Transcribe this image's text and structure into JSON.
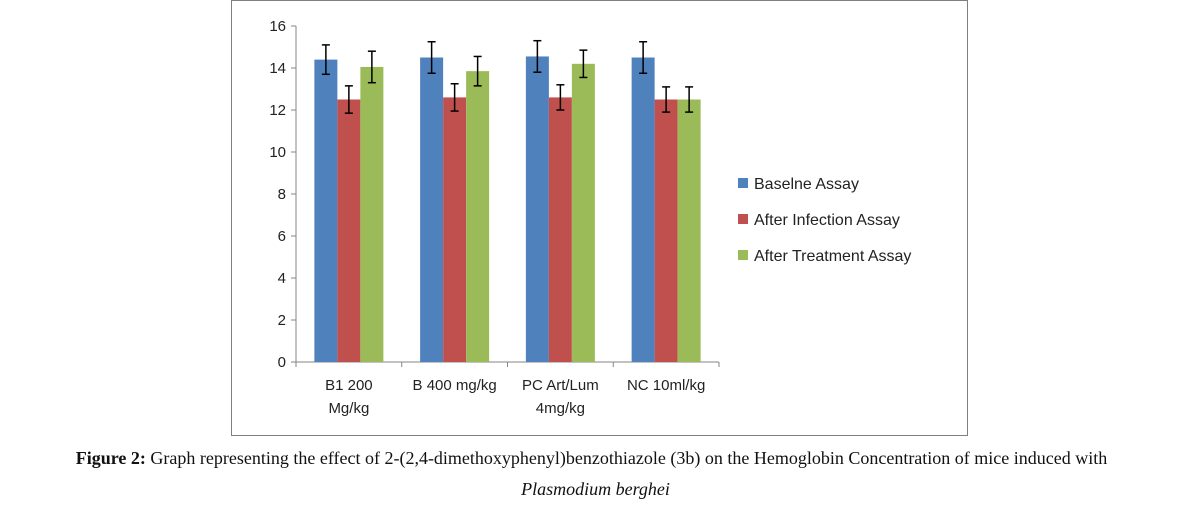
{
  "chart_data": {
    "type": "bar",
    "categories": [
      [
        "B1 200",
        "Mg/kg"
      ],
      [
        "B 400 mg/kg"
      ],
      [
        "PC Art/Lum",
        "4mg/kg"
      ],
      [
        "NC 10ml/kg"
      ]
    ],
    "series": [
      {
        "name": "Baselne Assay",
        "color": "#4f81bd",
        "values": [
          14.4,
          14.5,
          14.55,
          14.5
        ],
        "errors": [
          0.7,
          0.75,
          0.75,
          0.75
        ]
      },
      {
        "name": "After Infection Assay",
        "color": "#c0504d",
        "values": [
          12.5,
          12.6,
          12.6,
          12.5
        ],
        "errors": [
          0.65,
          0.65,
          0.6,
          0.6
        ]
      },
      {
        "name": "After Treatment Assay",
        "color": "#9bbb59",
        "values": [
          14.05,
          13.85,
          14.2,
          12.5
        ],
        "errors": [
          0.75,
          0.7,
          0.65,
          0.6
        ]
      }
    ],
    "ylim": [
      0,
      16
    ],
    "yticks": [
      0,
      2,
      4,
      6,
      8,
      10,
      12,
      14,
      16
    ],
    "legend_position": "right",
    "grid": false,
    "error_bars": true
  },
  "caption": {
    "label": "Figure 2:",
    "text": " Graph representing the effect of 2-(2,4-dimethoxyphenyl)benzothiazole (3b) on the Hemoglobin Concentration of mice induced with",
    "line2": "Plasmodium berghei"
  }
}
